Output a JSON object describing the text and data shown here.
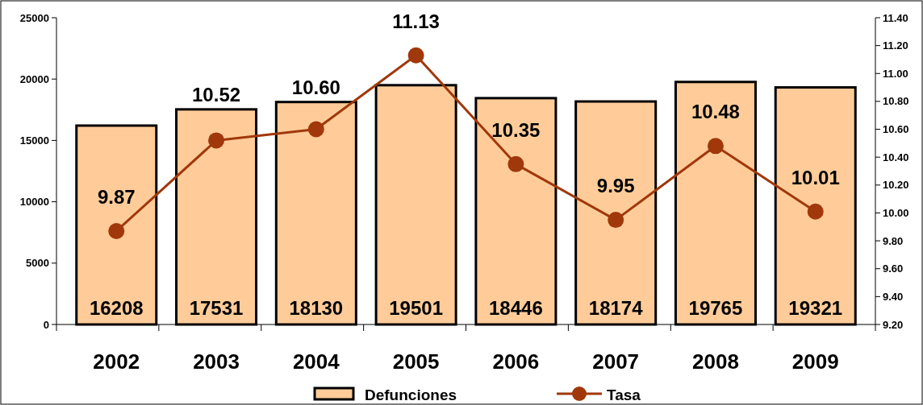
{
  "chart_data": {
    "type": "bar",
    "categories": [
      "2002",
      "2003",
      "2004",
      "2005",
      "2006",
      "2007",
      "2008",
      "2009"
    ],
    "series": [
      {
        "name": "Defunciones",
        "color": "#ffcc99",
        "values": [
          16208,
          17531,
          18130,
          19501,
          18446,
          18174,
          19765,
          19321
        ]
      },
      {
        "name": "Tasa",
        "type": "line",
        "axis": "y2",
        "color": "#a0380b",
        "marker": "circle",
        "values": [
          9.87,
          10.52,
          10.6,
          11.13,
          10.35,
          9.95,
          10.48,
          10.01
        ],
        "value_labels": [
          "9.87",
          "10.52",
          "10.60",
          "11.13",
          "10.35",
          "9.95",
          "10.48",
          "10.01"
        ]
      }
    ],
    "ylim": [
      0,
      25000
    ],
    "yticks": [
      0,
      5000,
      10000,
      15000,
      20000,
      25000
    ],
    "y2lim": [
      9.2,
      11.4
    ],
    "y2ticks": [
      {
        "value": 9.2,
        "label": "9.20"
      },
      {
        "value": 9.4,
        "label": "9.40"
      },
      {
        "value": 9.6,
        "label": "9.60"
      },
      {
        "value": 9.8,
        "label": "9.80"
      },
      {
        "value": 10,
        "label": "10.00"
      },
      {
        "value": 10.2,
        "label": "10.20"
      },
      {
        "value": 10.4,
        "label": "10.40"
      },
      {
        "value": 10.6,
        "label": "10.60"
      },
      {
        "value": 10.8,
        "label": "10.80"
      },
      {
        "value": 11,
        "label": "11.00"
      },
      {
        "value": 11.2,
        "label": "11.20"
      },
      {
        "value": 11.4,
        "label": "11.40"
      }
    ],
    "data_labels": true,
    "legend": "bottom",
    "grid": false
  }
}
